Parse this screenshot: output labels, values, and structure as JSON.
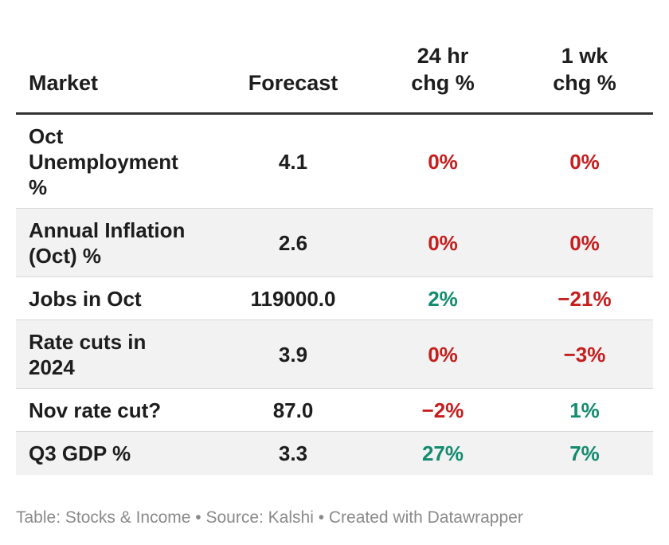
{
  "chart_data": {
    "type": "table",
    "columns": [
      "Market",
      "Forecast",
      "24 hr chg %",
      "1 wk chg %"
    ],
    "rows": [
      {
        "market": "Oct Unemployment %",
        "forecast": "4.1",
        "chg_24h": "0%",
        "chg_1wk": "0%",
        "chg_24h_sign": "zero",
        "chg_1wk_sign": "zero"
      },
      {
        "market": "Annual Inflation (Oct) %",
        "forecast": "2.6",
        "chg_24h": "0%",
        "chg_1wk": "0%",
        "chg_24h_sign": "zero",
        "chg_1wk_sign": "zero"
      },
      {
        "market": "Jobs in Oct",
        "forecast": "119000.0",
        "chg_24h": "2%",
        "chg_1wk": "−21%",
        "chg_24h_sign": "pos",
        "chg_1wk_sign": "neg"
      },
      {
        "market": "Rate cuts in 2024",
        "forecast": "3.9",
        "chg_24h": "0%",
        "chg_1wk": "−3%",
        "chg_24h_sign": "zero",
        "chg_1wk_sign": "neg"
      },
      {
        "market": "Nov rate cut?",
        "forecast": "87.0",
        "chg_24h": "−2%",
        "chg_1wk": "1%",
        "chg_24h_sign": "neg",
        "chg_1wk_sign": "pos"
      },
      {
        "market": "Q3 GDP %",
        "forecast": "3.3",
        "chg_24h": "27%",
        "chg_1wk": "7%",
        "chg_24h_sign": "pos",
        "chg_1wk_sign": "pos"
      }
    ],
    "colors": {
      "negative": "#c61d1d",
      "positive": "#128b6f"
    }
  },
  "header": {
    "market": "Market",
    "forecast": "Forecast",
    "chg_24h": "24 hr chg %",
    "chg_1wk": "1 wk chg %"
  },
  "footer": {
    "text": "Table: Stocks & Income • Source: Kalshi • Created with Datawrapper"
  }
}
